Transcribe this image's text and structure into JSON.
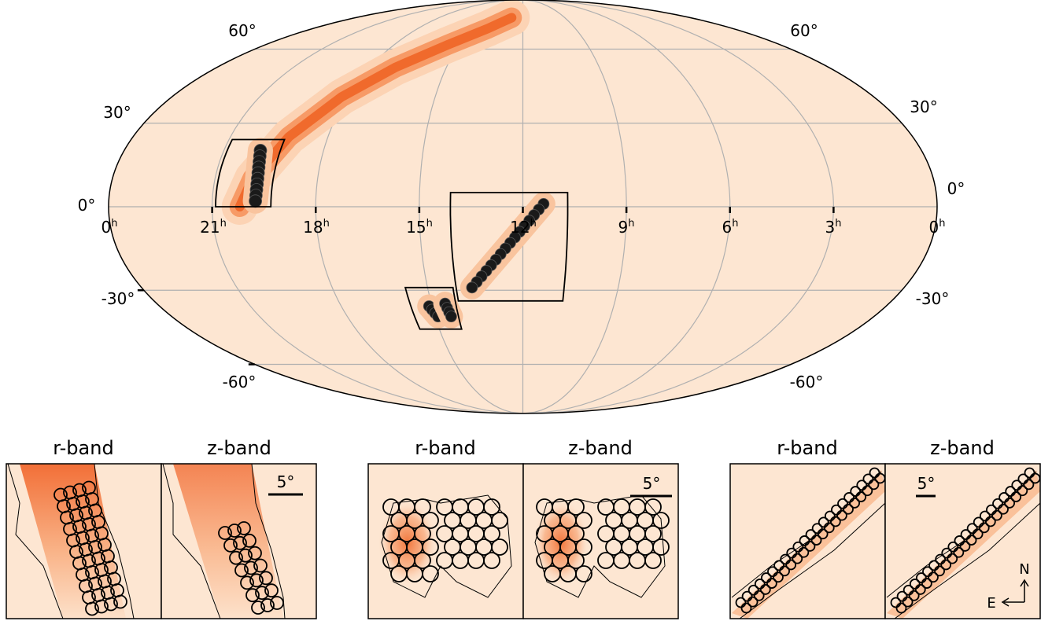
{
  "chart_data": [
    {
      "type": "heatmap",
      "projection": "mollweide",
      "grid": true,
      "ra_tick_labels": [
        {
          "hours": 0,
          "label": "0",
          "sup": "h"
        },
        {
          "hours": 21,
          "label": "21",
          "sup": "h"
        },
        {
          "hours": 18,
          "label": "18",
          "sup": "h"
        },
        {
          "hours": 15,
          "label": "15",
          "sup": "h"
        },
        {
          "hours": 12,
          "label": "12",
          "sup": "h"
        },
        {
          "hours": 9,
          "label": "9",
          "sup": "h"
        },
        {
          "hours": 6,
          "label": "6",
          "sup": "h"
        },
        {
          "hours": 3,
          "label": "3",
          "sup": "h"
        },
        {
          "hours": 0,
          "label": "0",
          "sup": "h"
        }
      ],
      "dec_tick_labels": [
        {
          "deg": 60,
          "label": "60°"
        },
        {
          "deg": 30,
          "label": "30°"
        },
        {
          "deg": 0,
          "label": "0°"
        },
        {
          "deg": -30,
          "label": "-30°"
        },
        {
          "deg": -60,
          "label": "-60°"
        }
      ],
      "skymap_arc": {
        "points_ra_hours": [
          20.2,
          19.9,
          19.2,
          18.2,
          17.0,
          15.5,
          14.0,
          12.8
        ],
        "points_dec_deg": [
          0,
          10,
          25,
          40,
          52,
          62,
          70,
          76
        ]
      },
      "localized_regions": [
        {
          "name": "region-1",
          "ra_center_hours": 19.8,
          "dec_center_deg": 12
        },
        {
          "name": "region-2",
          "ra_center_hours": 14.8,
          "dec_center_deg": -38
        },
        {
          "name": "region-3",
          "ra_center_hours": 12.4,
          "dec_center_deg": -15
        }
      ],
      "inset_boxes": [
        {
          "name": "box-1",
          "ra_hours": [
            19.3,
            20.9
          ],
          "dec_deg": [
            0,
            24
          ]
        },
        {
          "name": "box-2",
          "ra_hours": [
            14.2,
            15.7
          ],
          "dec_deg": [
            -45,
            -29
          ]
        },
        {
          "name": "box-3",
          "ra_hours": [
            10.7,
            14.1
          ],
          "dec_deg": [
            -34,
            5
          ]
        }
      ]
    },
    {
      "type": "heatmap",
      "group": "left",
      "panels": [
        {
          "title": "r-band",
          "scale_bar": ""
        },
        {
          "title": "z-band",
          "scale_bar": "5°"
        }
      ]
    },
    {
      "type": "heatmap",
      "group": "middle",
      "panels": [
        {
          "title": "r-band",
          "scale_bar": ""
        },
        {
          "title": "z-band",
          "scale_bar": "5°"
        }
      ]
    },
    {
      "type": "heatmap",
      "group": "right",
      "panels": [
        {
          "title": "r-band",
          "scale_bar": ""
        },
        {
          "title": "z-band",
          "scale_bar": "5°"
        }
      ],
      "compass": {
        "north": "N",
        "east": "E"
      }
    }
  ],
  "colors": {
    "background": "#fde6d2",
    "heat_mid": "#f79a66",
    "heat_high": "#f06a2c",
    "grid": "#b0b0b0",
    "outline": "#000000"
  }
}
